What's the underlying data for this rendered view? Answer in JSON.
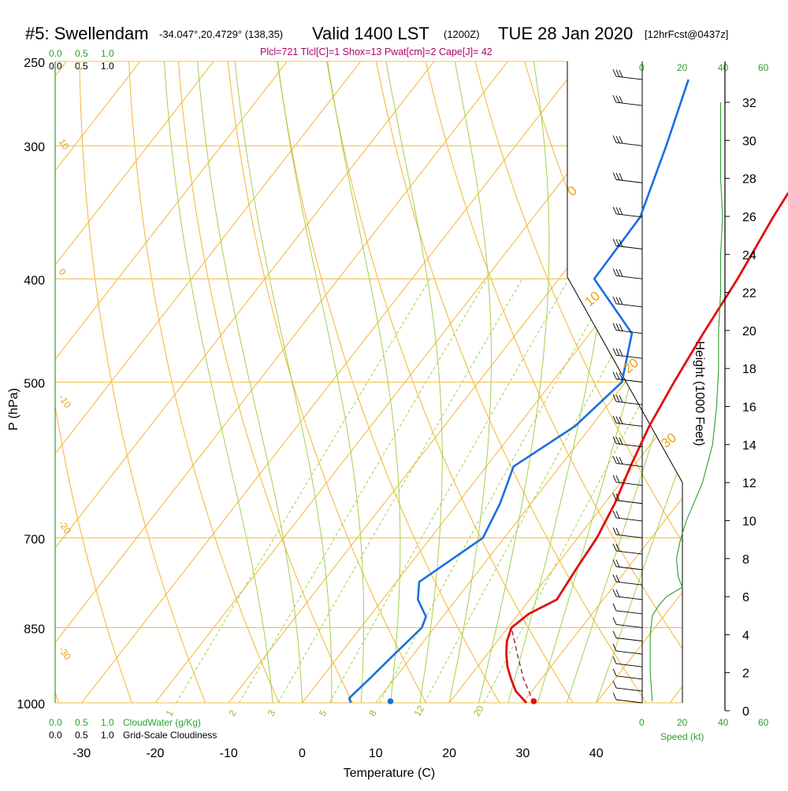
{
  "header": {
    "station": "#5: Swellendam",
    "coords": "-34.047°,20.4729° (138,35)",
    "valid": "Valid 1400 LST",
    "zulu": "(1200Z)",
    "date": "TUE 28 Jan 2020",
    "fcst": "[12hrFcst@0437z]",
    "diagnostics": "Plcl=721 Tlcl[C]=1 Shox=13 Pwat[cm]=2 Cape[J]= 42"
  },
  "axes": {
    "ylabel": "P (hPa)",
    "xlabel": "Temperature (C)",
    "height_label": "Height (1000 Feet)",
    "speed_label": "Speed (kt)",
    "cloudwater_label": "CloudWater (g/Kg)",
    "cloudiness_label": "Grid-Scale Cloudiness"
  },
  "top_scales": {
    "green": [
      "0.0",
      "0.5",
      "1.0"
    ],
    "black": [
      "0.0",
      "0.5",
      "1.0"
    ],
    "speed": [
      "0",
      "20",
      "40",
      "60"
    ]
  },
  "bottom_scales": {
    "green": [
      "0.0",
      "0.5",
      "1.0"
    ],
    "black": [
      "0.0",
      "0.5",
      "1.0"
    ],
    "speed": [
      "0",
      "20",
      "40",
      "60"
    ]
  },
  "colors": {
    "temperature": "#e01010",
    "dewpoint": "#1a6fe0",
    "isotherm": "#f0b030",
    "dry_adiabat": "#f0b030",
    "moist_adiabat": "#8cbf26",
    "mixing_ratio": "#8cbf26",
    "wind_speed": "#2ca02c"
  },
  "chart_data": {
    "type": "line",
    "title": "#5: Swellendam Valid 1400 LST (1200Z) TUE 28 Jan 2020",
    "pressure_ticks": [
      250,
      300,
      400,
      500,
      700,
      850,
      1000
    ],
    "temperature_ticks": [
      -30,
      -20,
      -10,
      0,
      10,
      20,
      30,
      40
    ],
    "height_ticks": [
      0,
      2,
      4,
      6,
      8,
      10,
      12,
      14,
      16,
      18,
      20,
      22,
      24,
      26,
      28,
      30,
      32
    ],
    "isotherm_labels": [
      "10",
      "0",
      "-10",
      "-20",
      "-30",
      "0",
      "10",
      "20",
      "30"
    ],
    "mixing_ratio_labels": [
      "1",
      "2",
      "3",
      "5",
      "8",
      "12",
      "20"
    ],
    "series": [
      {
        "name": "Temperature",
        "points": [
          {
            "p": 1000,
            "t": 30.5
          },
          {
            "p": 975,
            "t": 27.8
          },
          {
            "p": 950,
            "t": 25.9
          },
          {
            "p": 925,
            "t": 24.1
          },
          {
            "p": 900,
            "t": 22.6
          },
          {
            "p": 875,
            "t": 21.3
          },
          {
            "p": 850,
            "t": 20.5
          },
          {
            "p": 825,
            "t": 21.4
          },
          {
            "p": 800,
            "t": 23.7
          },
          {
            "p": 775,
            "t": 23.4
          },
          {
            "p": 750,
            "t": 23.1
          },
          {
            "p": 700,
            "t": 22.6
          },
          {
            "p": 650,
            "t": 21.4
          },
          {
            "p": 600,
            "t": 19.6
          },
          {
            "p": 550,
            "t": 17.9
          },
          {
            "p": 500,
            "t": 16.6
          },
          {
            "p": 450,
            "t": 15.4
          },
          {
            "p": 400,
            "t": 14.3
          },
          {
            "p": 350,
            "t": 12.6
          },
          {
            "p": 300,
            "t": 11.1
          },
          {
            "p": 260,
            "t": 9.6
          }
        ]
      },
      {
        "name": "Dewpoint",
        "points": [
          {
            "p": 1000,
            "t": 6.6
          },
          {
            "p": 990,
            "t": 5.9
          },
          {
            "p": 950,
            "t": 6.6
          },
          {
            "p": 900,
            "t": 7.4
          },
          {
            "p": 850,
            "t": 8.3
          },
          {
            "p": 830,
            "t": 7.7
          },
          {
            "p": 800,
            "t": 4.8
          },
          {
            "p": 770,
            "t": 3.1
          },
          {
            "p": 700,
            "t": 7.1
          },
          {
            "p": 650,
            "t": 5.8
          },
          {
            "p": 600,
            "t": 3.7
          },
          {
            "p": 550,
            "t": 7.8
          },
          {
            "p": 500,
            "t": 9.5
          },
          {
            "p": 450,
            "t": 5.7
          },
          {
            "p": 400,
            "t": -5.2
          },
          {
            "p": 350,
            "t": -5.5
          },
          {
            "p": 300,
            "t": -9.5
          },
          {
            "p": 260,
            "t": -13.5
          }
        ]
      },
      {
        "name": "Parcel",
        "points": [
          {
            "p": 1000,
            "t": 31.5
          },
          {
            "p": 950,
            "t": 27.6
          },
          {
            "p": 900,
            "t": 24.1
          },
          {
            "p": 850,
            "t": 20.5
          }
        ]
      }
    ],
    "surface_points": [
      {
        "name": "surface_temperature",
        "p": 1000,
        "t": 31.5
      },
      {
        "name": "surface_dewpoint",
        "p": 1000,
        "t": 12
      }
    ],
    "wind_speed_profile": [
      {
        "height_kft": 0.5,
        "speed_kt": 5
      },
      {
        "height_kft": 2,
        "speed_kt": 4
      },
      {
        "height_kft": 4,
        "speed_kt": 4
      },
      {
        "height_kft": 5,
        "speed_kt": 5
      },
      {
        "height_kft": 5.5,
        "speed_kt": 8
      },
      {
        "height_kft": 6,
        "speed_kt": 12
      },
      {
        "height_kft": 6.5,
        "speed_kt": 20
      },
      {
        "height_kft": 7,
        "speed_kt": 18
      },
      {
        "height_kft": 8,
        "speed_kt": 17
      },
      {
        "height_kft": 9,
        "speed_kt": 19
      },
      {
        "height_kft": 10,
        "speed_kt": 22
      },
      {
        "height_kft": 12,
        "speed_kt": 30
      },
      {
        "height_kft": 14,
        "speed_kt": 35
      },
      {
        "height_kft": 16,
        "speed_kt": 37
      },
      {
        "height_kft": 18,
        "speed_kt": 38
      },
      {
        "height_kft": 20,
        "speed_kt": 38
      },
      {
        "height_kft": 22,
        "speed_kt": 39
      },
      {
        "height_kft": 24,
        "speed_kt": 39
      },
      {
        "height_kft": 26,
        "speed_kt": 40
      },
      {
        "height_kft": 28,
        "speed_kt": 39
      },
      {
        "height_kft": 30,
        "speed_kt": 39
      },
      {
        "height_kft": 32,
        "speed_kt": 39
      }
    ],
    "wind_barb_levels": [
      1000,
      975,
      950,
      925,
      900,
      875,
      850,
      825,
      800,
      775,
      750,
      725,
      700,
      675,
      650,
      625,
      600,
      575,
      550,
      525,
      500,
      475,
      450,
      425,
      400,
      375,
      350,
      325,
      300,
      275,
      260
    ],
    "xlim": [
      -35,
      45
    ],
    "ylim": [
      1000,
      250
    ],
    "grid": true
  }
}
